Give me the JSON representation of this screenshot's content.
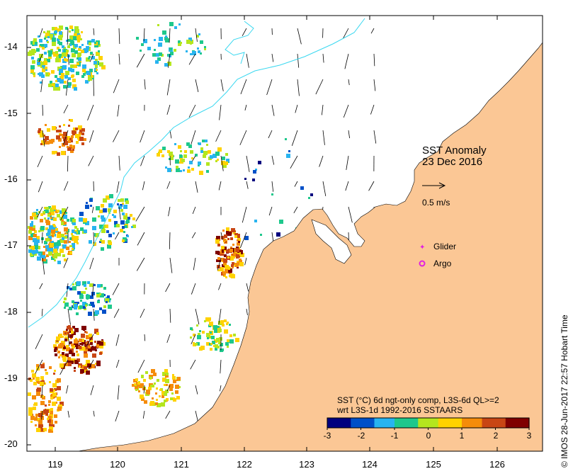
{
  "title": {
    "line1": "SST Anomaly",
    "line2": "23 Dec 2016"
  },
  "velocity_scale": {
    "label": "0.5 m/s"
  },
  "legend": {
    "glider": "Glider",
    "argo": "Argo"
  },
  "axes": {
    "y_ticks": [
      "-14",
      "-15",
      "-16",
      "-17",
      "-18",
      "-19",
      "-20"
    ],
    "x_ticks": [
      "119",
      "120",
      "121",
      "122",
      "123",
      "124",
      "125",
      "126"
    ]
  },
  "colorbar": {
    "caption_line1": "SST (°C) 6d ngt-only comp, L3S-6d QL>=2",
    "caption_line2": "wrt L3S-1d 1992-2016 SSTAARS",
    "ticks": [
      "-3",
      "-2",
      "-1",
      "0",
      "1",
      "2",
      "3"
    ],
    "range": [
      -3,
      3
    ]
  },
  "credit": "© IMOS 28-Jun-2017 22:57 Hobart Time",
  "colors": {
    "land": "#fbc795",
    "contour": "#39d8f0",
    "glider": "#e020e0",
    "argo": "#e020e0",
    "colormap": [
      "#00007f",
      "#0050c8",
      "#28b4f0",
      "#1ec88c",
      "#b4e61e",
      "#ffd200",
      "#f58c0a",
      "#c84614",
      "#7f0000"
    ]
  }
}
